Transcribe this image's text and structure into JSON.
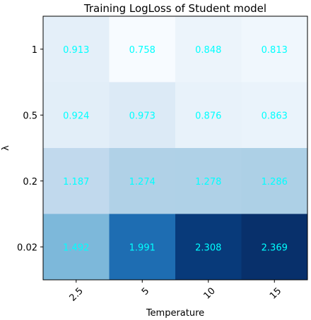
{
  "chart_data": {
    "type": "heatmap",
    "title": "Training LogLoss of Student model",
    "xlabel": "Temperature",
    "ylabel": "λ",
    "x": [
      "2.5",
      "5",
      "10",
      "15"
    ],
    "y": [
      "1",
      "0.5",
      "0.2",
      "0.02"
    ],
    "values": [
      [
        0.913,
        0.758,
        0.848,
        0.813
      ],
      [
        0.924,
        0.973,
        0.876,
        0.863
      ],
      [
        1.187,
        1.274,
        1.278,
        1.286
      ],
      [
        1.492,
        1.991,
        2.308,
        2.369
      ]
    ],
    "cell_labels": [
      [
        "0.913",
        "0.758",
        "0.848",
        "0.813"
      ],
      [
        "0.924",
        "0.973",
        "0.876",
        "0.863"
      ],
      [
        "1.187",
        "1.274",
        "1.278",
        "1.286"
      ],
      [
        "1.492",
        "1.991",
        "2.308",
        "2.369"
      ]
    ],
    "colormap": "Blues",
    "label_color": "#00ffff",
    "x_tick_rotation_deg": 45,
    "legend": "none",
    "grid": false
  }
}
